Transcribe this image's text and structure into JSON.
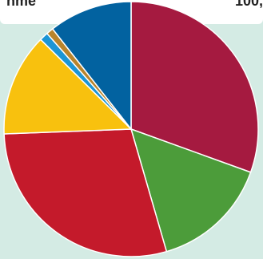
{
  "header": {
    "left_text": "hme",
    "right_text": "100,"
  },
  "chart_data": {
    "type": "pie",
    "title": "",
    "start": "12 o'clock",
    "direction": "clockwise",
    "slices": [
      {
        "value": 30.5,
        "color": "#a51a40"
      },
      {
        "value": 15.0,
        "color": "#4c9c3a"
      },
      {
        "value": 28.9,
        "color": "#c41a2b"
      },
      {
        "value": 13.0,
        "color": "#f8c10e"
      },
      {
        "value": 1.1,
        "color": "#1c95d5"
      },
      {
        "value": 0.9,
        "color": "#b8842c"
      },
      {
        "value": 10.6,
        "color": "#0262a0"
      }
    ]
  }
}
